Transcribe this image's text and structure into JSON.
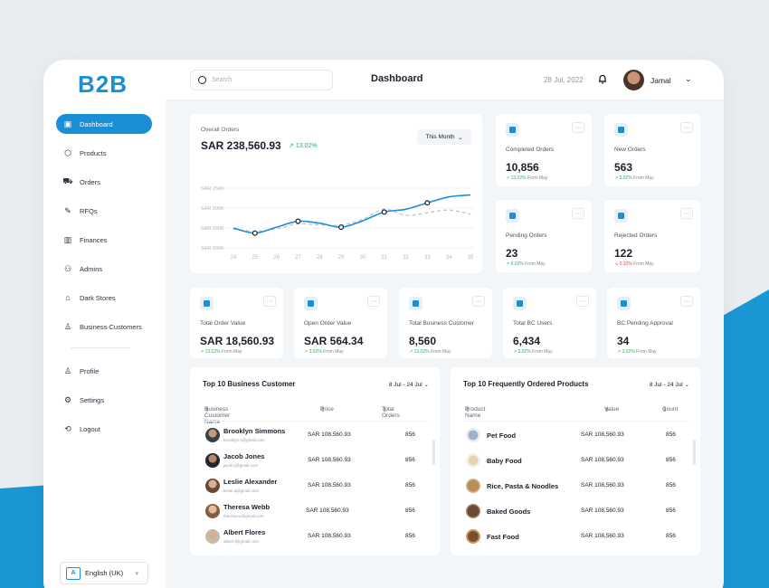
{
  "logo": "B2B",
  "sidebar": {
    "items": [
      {
        "label": "Dashboard",
        "icon": "dashboard-icon",
        "active": true
      },
      {
        "label": "Products",
        "icon": "box-icon"
      },
      {
        "label": "Orders",
        "icon": "cart-icon"
      },
      {
        "label": "RFQs",
        "icon": "rfq-icon"
      },
      {
        "label": "Finances",
        "icon": "finance-chart-icon"
      },
      {
        "label": "Admins",
        "icon": "admins-icon"
      },
      {
        "label": "Dark Stores",
        "icon": "store-icon"
      },
      {
        "label": "Business Customers",
        "icon": "business-customer-icon"
      }
    ],
    "bottom_items": [
      {
        "label": "Profile",
        "icon": "user-icon"
      },
      {
        "label": "Settings",
        "icon": "gear-icon"
      },
      {
        "label": "Logout",
        "icon": "logout-icon"
      }
    ],
    "language": "English (UK)"
  },
  "topbar": {
    "search_placeholder": "Search",
    "title": "Dashboard",
    "date": "28 Jul, 2022",
    "user_name": "Jamal"
  },
  "overall_orders": {
    "title": "Overall Orders",
    "value": "SAR 238,560.93",
    "delta": "13.02%",
    "period": "This Month"
  },
  "chart_data": {
    "type": "line",
    "x": [
      "24",
      "25",
      "26",
      "27",
      "28",
      "29",
      "30",
      "31",
      "32",
      "33",
      "34",
      "35"
    ],
    "y_ticks": [
      "SAR 250K",
      "SAR 200K",
      "SAR 150K",
      "SAR 100K"
    ],
    "ylim": [
      100,
      250
    ],
    "series": [
      {
        "values": [
          150,
          137,
          152,
          167,
          162,
          152,
          168,
          190,
          197,
          213,
          228,
          233
        ]
      },
      {
        "values": [
          147,
          142,
          148,
          160,
          158,
          157,
          172,
          197,
          182,
          188,
          195,
          185
        ]
      }
    ],
    "highlighted_points_x": [
      "25",
      "27",
      "29",
      "31",
      "33"
    ],
    "grid": true
  },
  "stats_small": [
    {
      "label": "Completed Orders",
      "value": "10,856",
      "delta": "13.02%",
      "delta_text": "From May",
      "trend": "up"
    },
    {
      "label": "New Orders",
      "value": "563",
      "delta": "3.02%",
      "delta_text": "From May",
      "trend": "up"
    },
    {
      "label": "Pending Orders",
      "value": "23",
      "delta": "6.02%",
      "delta_text": "From May",
      "trend": "up"
    },
    {
      "label": "Rejected Orders",
      "value": "122",
      "delta": "0.32%",
      "delta_text": "From May",
      "trend": "down"
    }
  ],
  "stats_row": [
    {
      "label": "Total Order Value",
      "value": "SAR 18,560.93",
      "delta": "13.02%",
      "delta_text": "From May"
    },
    {
      "label": "Open Order Value",
      "value": "SAR 564.34",
      "delta": "3.02%",
      "delta_text": "From May"
    },
    {
      "label": "Total Business Customer",
      "value": "8,560",
      "delta": "13.02%",
      "delta_text": "From May"
    },
    {
      "label": "Total BC Users",
      "value": "6,434",
      "delta": "3.02%",
      "delta_text": "From May"
    },
    {
      "label": "BC Pending Approval",
      "value": "34",
      "delta": "3.02%",
      "delta_text": "From May"
    }
  ],
  "colors": {
    "accent": "#1a8fd6",
    "positive": "#20b26b",
    "negative": "#e04848"
  },
  "top_customers": {
    "title": "Top 10 Business Customer",
    "range": "8 Jul  -  24 Jul",
    "columns": [
      "Business Customer Name",
      "Price",
      "Total Orders"
    ],
    "rows": [
      {
        "name": "Brooklyn Simmons",
        "email": "brooklyn.s@gmail.com",
        "price": "SAR 108,560.93",
        "orders": "856"
      },
      {
        "name": "Jacob Jones",
        "email": "jacob.j@gmail.com",
        "price": "SAR 108,560.93",
        "orders": "856"
      },
      {
        "name": "Leslie Alexander",
        "email": "leslie.a@gmail.com",
        "price": "SAR 108,560.93",
        "orders": "856"
      },
      {
        "name": "Theresa Webb",
        "email": "theresa.w@gmail.com",
        "price": "SAR 108,560.93",
        "orders": "856"
      },
      {
        "name": "Albert Flores",
        "email": "albert.f@gmail.com",
        "price": "SAR 108,560.93",
        "orders": "856"
      }
    ]
  },
  "top_products": {
    "title": "Top 10 Frequently Ordered Products",
    "range": "8 Jul  -  24 Jul",
    "columns": [
      "Product Name",
      "Value",
      "Count"
    ],
    "rows": [
      {
        "name": "Pet Food",
        "value": "SAR 108,560.93",
        "count": "856"
      },
      {
        "name": "Baby Food",
        "value": "SAR 108,560.93",
        "count": "856"
      },
      {
        "name": "Rice, Pasta & Noodles",
        "value": "SAR 108,560.93",
        "count": "856"
      },
      {
        "name": "Baked Goods",
        "value": "SAR 108,560.93",
        "count": "856"
      },
      {
        "name": "Fast Food",
        "value": "SAR 108,560.93",
        "count": "856"
      }
    ]
  }
}
